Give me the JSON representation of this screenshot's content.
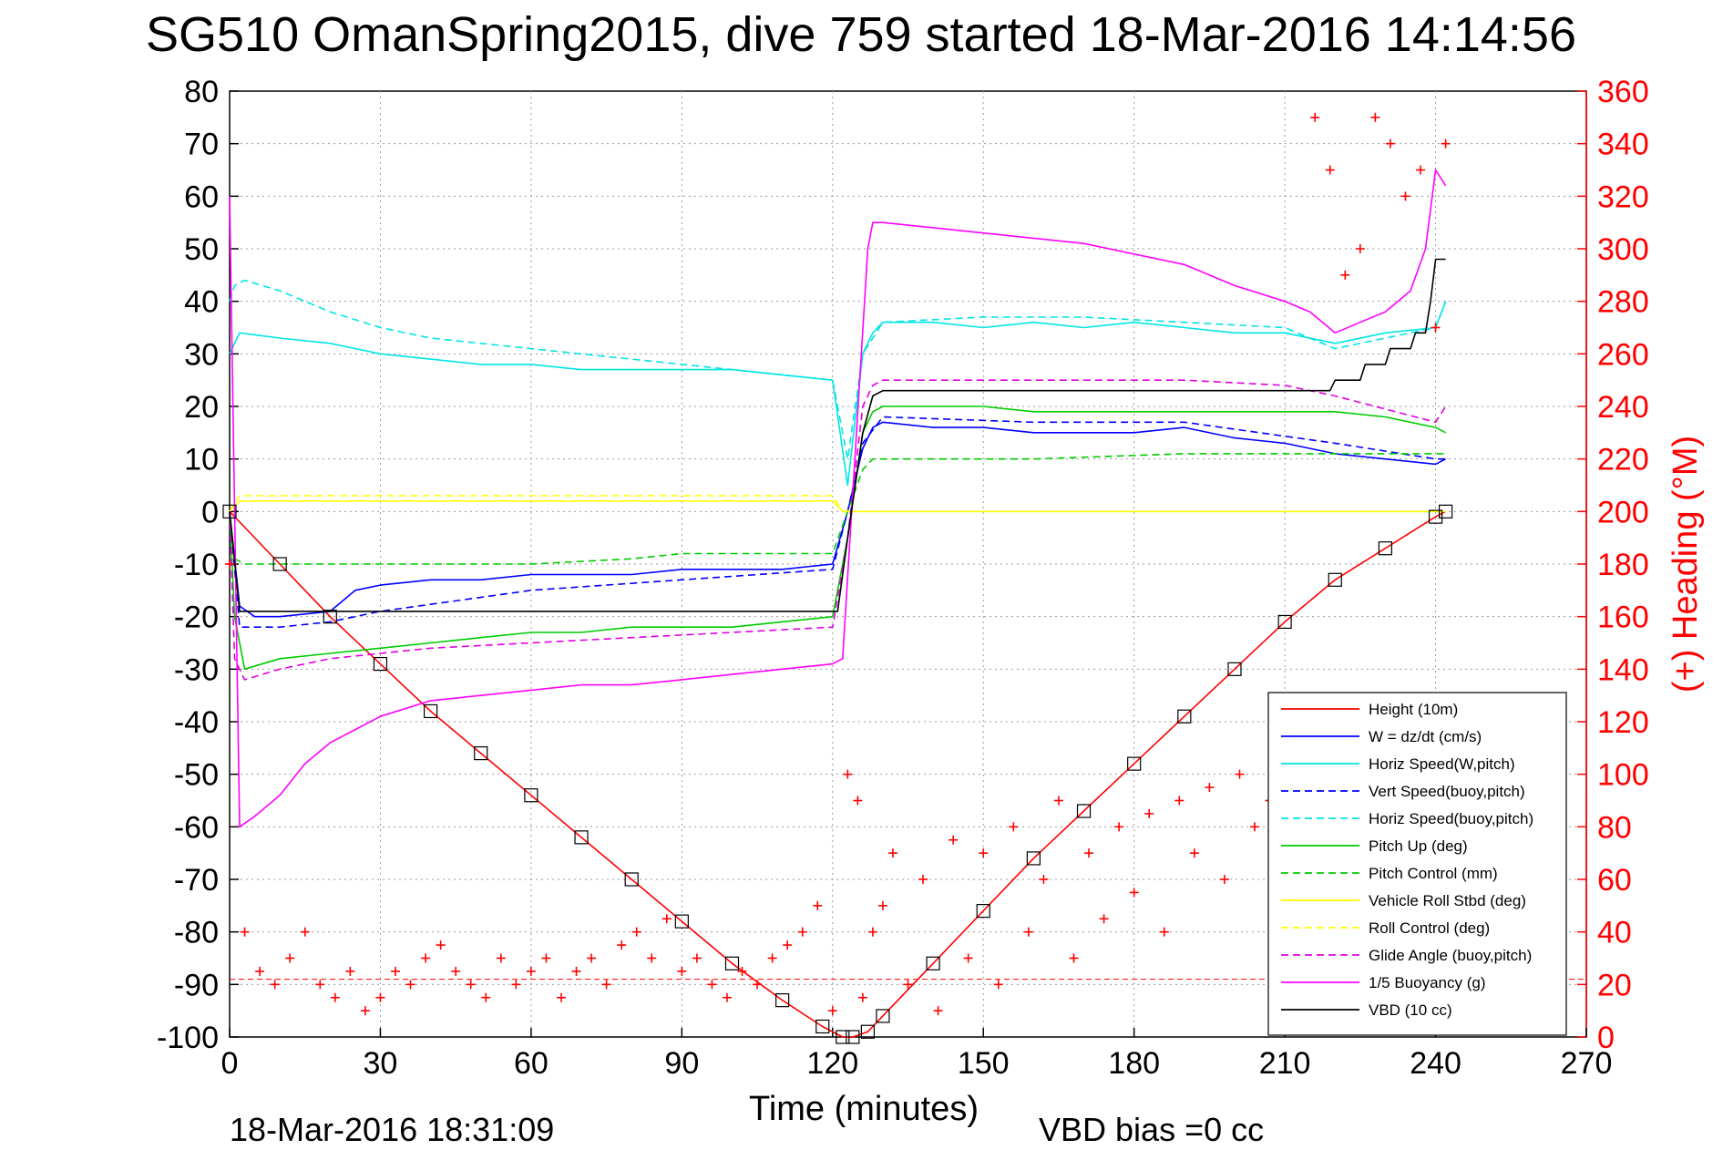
{
  "chart_data": {
    "type": "line",
    "title": "SG510 OmanSpring2015, dive 759 started 18-Mar-2016 14:14:56",
    "xlabel": "Time (minutes)",
    "ylabel": "",
    "y2label": "(+) Heading (°M)",
    "xlim": [
      0,
      270
    ],
    "ylim": [
      -100,
      80
    ],
    "y2lim": [
      0,
      360
    ],
    "xticks": [
      "0",
      "30",
      "60",
      "90",
      "120",
      "150",
      "180",
      "210",
      "240",
      "270"
    ],
    "yticks": [
      "80",
      "70",
      "60",
      "50",
      "40",
      "30",
      "20",
      "10",
      "0",
      "-10",
      "-20",
      "-30",
      "-40",
      "-50",
      "-60",
      "-70",
      "-80",
      "-90",
      "-100"
    ],
    "y2ticks": [
      "360",
      "340",
      "320",
      "300",
      "280",
      "260",
      "240",
      "220",
      "200",
      "180",
      "160",
      "140",
      "120",
      "100",
      "80",
      "60",
      "40",
      "20",
      "0"
    ],
    "grid": true,
    "legend_position": "bottom-right",
    "footer_left": "18-Mar-2016 18:31:09",
    "footer_right": "VBD bias =0 cc",
    "apogee_line_y": -89,
    "series": [
      {
        "name": "Height (10m)",
        "color": "#ff0000",
        "style": "solid",
        "axis": "left",
        "x": [
          0,
          10,
          20,
          30,
          40,
          50,
          60,
          70,
          80,
          90,
          100,
          110,
          118,
          122,
          124,
          127,
          130,
          140,
          150,
          160,
          170,
          180,
          190,
          200,
          210,
          220,
          230,
          240,
          242
        ],
        "y": [
          0,
          -10,
          -20,
          -29,
          -38,
          -46,
          -54,
          -62,
          -70,
          -78,
          -86,
          -93,
          -98,
          -100,
          -100,
          -99,
          -96,
          -86,
          -76,
          -66,
          -57,
          -48,
          -39,
          -30,
          -21,
          -13,
          -7,
          -1,
          0
        ]
      },
      {
        "name": "W = dz/dt (cm/s)",
        "color": "#0000ff",
        "style": "solid",
        "axis": "left",
        "x": [
          0,
          2,
          5,
          10,
          20,
          25,
          30,
          40,
          50,
          60,
          70,
          80,
          90,
          100,
          110,
          120,
          123,
          126,
          128,
          130,
          140,
          150,
          160,
          170,
          180,
          190,
          200,
          210,
          220,
          230,
          240,
          242
        ],
        "y": [
          0,
          -18,
          -20,
          -20,
          -19,
          -15,
          -14,
          -13,
          -13,
          -12,
          -12,
          -12,
          -11,
          -11,
          -11,
          -10,
          0,
          12,
          16,
          17,
          16,
          16,
          15,
          15,
          15,
          16,
          14,
          13,
          11,
          10,
          9,
          10
        ]
      },
      {
        "name": "Horiz Speed(W,pitch)",
        "color": "#00e5e5",
        "style": "solid",
        "axis": "left",
        "x": [
          0,
          1,
          2,
          10,
          20,
          30,
          40,
          50,
          60,
          70,
          80,
          90,
          100,
          110,
          120,
          123,
          126,
          128,
          130,
          140,
          150,
          160,
          170,
          180,
          190,
          200,
          210,
          220,
          230,
          240,
          242
        ],
        "y": [
          30,
          32,
          34,
          33,
          32,
          30,
          29,
          28,
          28,
          27,
          27,
          27,
          27,
          26,
          25,
          5,
          30,
          34,
          36,
          36,
          35,
          36,
          35,
          36,
          35,
          34,
          34,
          32,
          34,
          35,
          40
        ]
      },
      {
        "name": "Vert Speed(buoy,pitch)",
        "color": "#0000ff",
        "style": "dashed",
        "axis": "left",
        "x": [
          0,
          2,
          10,
          20,
          30,
          60,
          90,
          120,
          123,
          126,
          130,
          160,
          190,
          220,
          240,
          242
        ],
        "y": [
          0,
          -22,
          -22,
          -21,
          -19,
          -15,
          -13,
          -11,
          0,
          13,
          18,
          17,
          17,
          13,
          10,
          10
        ]
      },
      {
        "name": "Horiz Speed(buoy,pitch)",
        "color": "#00e5e5",
        "style": "dashed",
        "axis": "left",
        "x": [
          0,
          1,
          3,
          10,
          20,
          30,
          40,
          60,
          80,
          100,
          120,
          123,
          126,
          130,
          150,
          170,
          190,
          210,
          220,
          240,
          242
        ],
        "y": [
          40,
          43,
          44,
          42,
          38,
          35,
          33,
          31,
          29,
          27,
          25,
          10,
          30,
          36,
          37,
          37,
          36,
          35,
          31,
          35,
          40
        ]
      },
      {
        "name": "Pitch Up (deg)",
        "color": "#00cc00",
        "style": "solid",
        "axis": "left",
        "x": [
          0,
          1,
          3,
          10,
          20,
          30,
          40,
          50,
          60,
          70,
          80,
          90,
          100,
          110,
          120,
          123,
          126,
          128,
          130,
          150,
          160,
          170,
          180,
          190,
          200,
          210,
          220,
          230,
          240,
          242
        ],
        "y": [
          0,
          -20,
          -30,
          -28,
          -27,
          -26,
          -25,
          -24,
          -23,
          -23,
          -22,
          -22,
          -22,
          -21,
          -20,
          -5,
          15,
          19,
          20,
          20,
          19,
          19,
          19,
          19,
          19,
          19,
          19,
          18,
          16,
          15
        ]
      },
      {
        "name": "Pitch Control (mm)",
        "color": "#00cc00",
        "style": "dashed",
        "axis": "left",
        "x": [
          0,
          1,
          3,
          10,
          20,
          30,
          40,
          60,
          80,
          90,
          100,
          110,
          120,
          123,
          126,
          128,
          130,
          160,
          190,
          220,
          240,
          242
        ],
        "y": [
          0,
          -9,
          -10,
          -10,
          -10,
          -10,
          -10,
          -10,
          -9,
          -8,
          -8,
          -8,
          -8,
          0,
          8,
          10,
          10,
          10,
          11,
          11,
          11,
          11
        ]
      },
      {
        "name": "Vehicle Roll Stbd (deg)",
        "color": "#ffff00",
        "style": "solid",
        "axis": "left",
        "x": [
          0,
          2,
          10,
          30,
          60,
          90,
          120,
          122,
          126,
          128,
          130,
          160,
          190,
          210,
          220,
          240,
          242
        ],
        "y": [
          0,
          2,
          2,
          2,
          2,
          2,
          2,
          0,
          0,
          0,
          0,
          0,
          0,
          0,
          0,
          0,
          0
        ]
      },
      {
        "name": "Roll Control (deg)",
        "color": "#ffff00",
        "style": "dashed",
        "axis": "left",
        "x": [
          0,
          2,
          10,
          30,
          60,
          90,
          120,
          122,
          126,
          130,
          160,
          190,
          220,
          240,
          242
        ],
        "y": [
          0,
          3,
          3,
          3,
          3,
          3,
          3,
          0,
          0,
          0,
          0,
          0,
          0,
          0,
          0
        ]
      },
      {
        "name": "Glide Angle (buoy,pitch)",
        "color": "#e000e0",
        "style": "dashed",
        "axis": "left",
        "x": [
          0,
          1,
          3,
          10,
          20,
          30,
          40,
          60,
          80,
          100,
          120,
          123,
          126,
          128,
          130,
          160,
          190,
          210,
          220,
          240,
          242
        ],
        "y": [
          0,
          -28,
          -32,
          -30,
          -28,
          -27,
          -26,
          -25,
          -24,
          -23,
          -22,
          -5,
          20,
          24,
          25,
          25,
          25,
          24,
          22,
          17,
          20
        ]
      },
      {
        "name": "1/5 Buoyancy (g)",
        "color": "#ff00ff",
        "style": "solid",
        "axis": "left",
        "x": [
          0,
          1,
          2,
          5,
          10,
          15,
          20,
          30,
          40,
          50,
          60,
          70,
          80,
          90,
          100,
          110,
          120,
          122,
          127,
          128,
          130,
          150,
          170,
          190,
          200,
          210,
          215,
          220,
          225,
          230,
          235,
          238,
          240,
          242
        ],
        "y": [
          60,
          0,
          -60,
          -58,
          -54,
          -48,
          -44,
          -39,
          -36,
          -35,
          -34,
          -33,
          -33,
          -32,
          -31,
          -30,
          -29,
          -28,
          50,
          55,
          55,
          53,
          51,
          47,
          43,
          40,
          38,
          34,
          36,
          38,
          42,
          50,
          65,
          62
        ]
      },
      {
        "name": "VBD (10 cc)",
        "color": "#000000",
        "style": "solid",
        "axis": "left",
        "x": [
          0,
          2,
          3,
          10,
          30,
          60,
          90,
          120,
          121,
          123,
          126,
          128,
          130,
          150,
          170,
          190,
          210,
          215,
          219,
          220,
          225,
          226,
          230,
          231,
          235,
          236,
          238,
          239,
          240,
          242
        ],
        "y": [
          0,
          -19,
          -19,
          -19,
          -19,
          -19,
          -19,
          -19,
          -19,
          -5,
          15,
          22,
          23,
          23,
          23,
          23,
          23,
          23,
          23,
          25,
          25,
          28,
          28,
          31,
          31,
          34,
          34,
          40,
          48,
          48
        ]
      },
      {
        "name": "Heading",
        "color": "#ff0000",
        "style": "markers",
        "axis": "right",
        "x": [
          0,
          3,
          6,
          9,
          12,
          15,
          18,
          21,
          24,
          27,
          30,
          33,
          36,
          39,
          42,
          45,
          48,
          51,
          54,
          57,
          60,
          63,
          66,
          69,
          72,
          75,
          78,
          81,
          84,
          87,
          90,
          93,
          96,
          99,
          102,
          105,
          108,
          111,
          114,
          117,
          120,
          123,
          125,
          126,
          128,
          130,
          132,
          135,
          138,
          141,
          144,
          147,
          150,
          153,
          156,
          159,
          162,
          165,
          168,
          171,
          174,
          177,
          180,
          183,
          186,
          189,
          192,
          195,
          198,
          201,
          204,
          207,
          210,
          213,
          216,
          219,
          222,
          225,
          228,
          231,
          234,
          237,
          240,
          242
        ],
        "y": [
          180,
          40,
          25,
          20,
          30,
          40,
          20,
          15,
          25,
          10,
          15,
          25,
          20,
          30,
          35,
          25,
          20,
          15,
          30,
          20,
          25,
          30,
          15,
          25,
          30,
          20,
          35,
          40,
          30,
          45,
          25,
          30,
          20,
          15,
          25,
          20,
          30,
          35,
          40,
          50,
          10,
          100,
          90,
          15,
          40,
          50,
          70,
          20,
          60,
          10,
          75,
          30,
          70,
          20,
          80,
          40,
          60,
          90,
          30,
          70,
          45,
          80,
          55,
          85,
          40,
          90,
          70,
          95,
          60,
          100,
          80,
          90,
          70,
          95,
          350,
          330,
          290,
          300,
          350,
          340,
          320,
          330,
          270,
          340
        ]
      }
    ]
  }
}
